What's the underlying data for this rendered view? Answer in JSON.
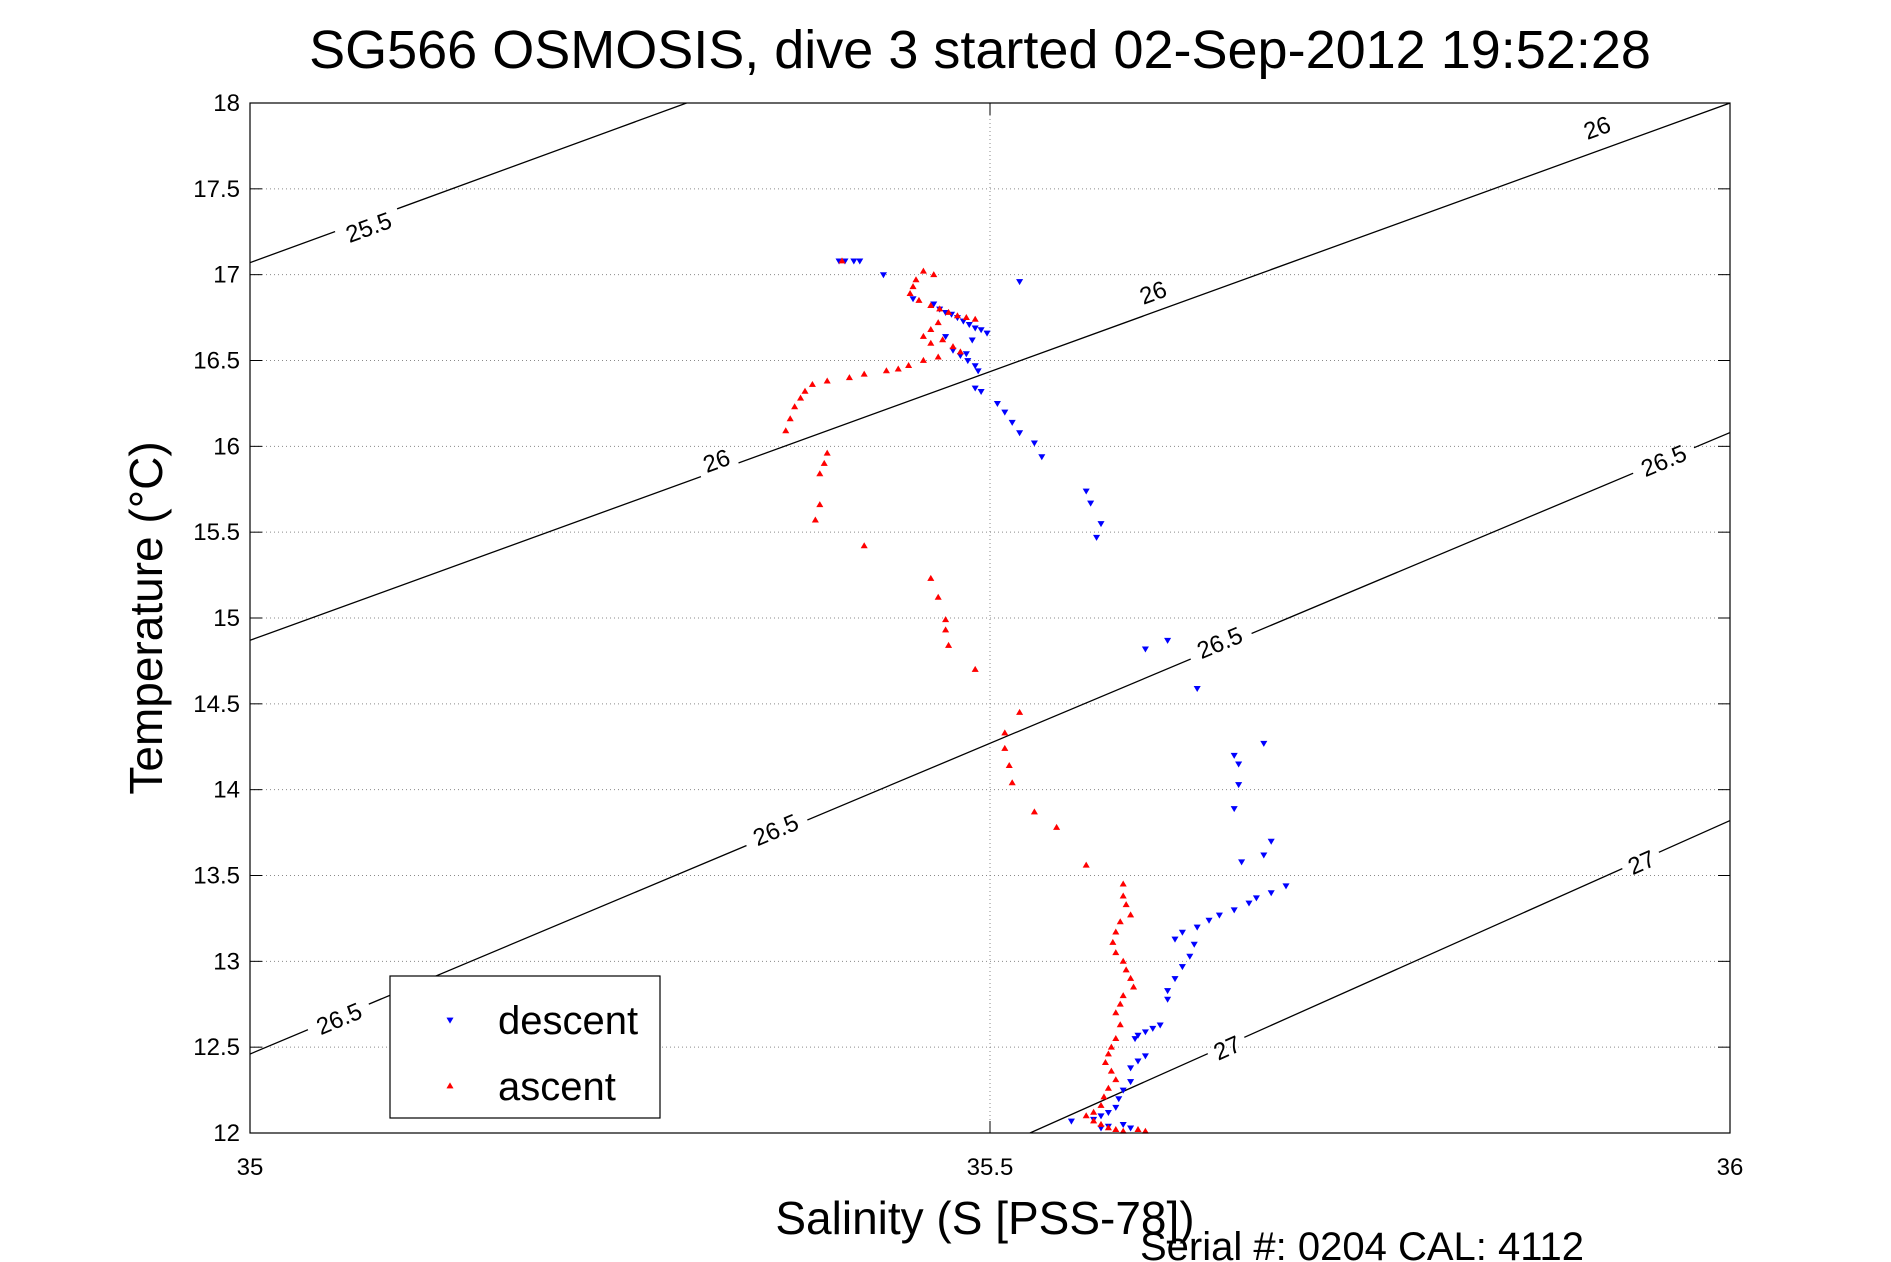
{
  "chart_data": {
    "type": "scatter",
    "title": "SG566 OSMOSIS, dive 3 started 02-Sep-2012 19:52:28",
    "xlabel": "Salinity (S [PSS-78])",
    "ylabel": "Temperature (°C)",
    "footer": "Serial #: 0204  CAL: 4112",
    "xlim": [
      35,
      36
    ],
    "ylim": [
      12,
      18
    ],
    "xticks": [
      35,
      35.5,
      36
    ],
    "xtick_labels": [
      "35",
      "35.5",
      "36"
    ],
    "yticks": [
      12,
      12.5,
      13,
      13.5,
      14,
      14.5,
      15,
      15.5,
      16,
      16.5,
      17,
      17.5,
      18
    ],
    "ytick_labels": [
      "12",
      "12.5",
      "13",
      "13.5",
      "14",
      "14.5",
      "15",
      "15.5",
      "16",
      "16.5",
      "17",
      "17.5",
      "18"
    ],
    "grid": true,
    "legend_position": "bottom-left",
    "colors": {
      "descent": "#0000ff",
      "ascent": "#ff0000",
      "contour": "#000000"
    },
    "contours": [
      {
        "label": "25.5",
        "points": [
          [
            35,
            17.07
          ],
          [
            35.295,
            18
          ]
        ],
        "label_positions": [
          [
            35.08,
            17.28
          ]
        ]
      },
      {
        "label": "26",
        "points": [
          [
            35,
            14.87
          ],
          [
            36,
            18
          ]
        ],
        "label_positions": [
          [
            35.315,
            15.92
          ],
          [
            35.61,
            16.9
          ],
          [
            35.91,
            17.86
          ]
        ]
      },
      {
        "label": "26.5",
        "points": [
          [
            35,
            12.46
          ],
          [
            36,
            16.08
          ]
        ],
        "label_positions": [
          [
            35.06,
            12.67
          ],
          [
            35.355,
            13.77
          ],
          [
            35.655,
            14.86
          ],
          [
            35.955,
            15.92
          ]
        ]
      },
      {
        "label": "27",
        "points": [
          [
            35.527,
            12
          ],
          [
            36,
            13.82
          ]
        ],
        "label_positions": [
          [
            35.66,
            12.5
          ],
          [
            35.94,
            13.58
          ]
        ]
      }
    ],
    "series": [
      {
        "name": "descent",
        "marker": "triangle-down",
        "points": [
          [
            35.398,
            17.08
          ],
          [
            35.402,
            17.08
          ],
          [
            35.408,
            17.08
          ],
          [
            35.412,
            17.08
          ],
          [
            35.428,
            17.0
          ],
          [
            35.52,
            16.96
          ],
          [
            35.448,
            16.86
          ],
          [
            35.462,
            16.83
          ],
          [
            35.466,
            16.8
          ],
          [
            35.47,
            16.78
          ],
          [
            35.474,
            16.77
          ],
          [
            35.478,
            16.75
          ],
          [
            35.482,
            16.73
          ],
          [
            35.486,
            16.71
          ],
          [
            35.49,
            16.69
          ],
          [
            35.494,
            16.68
          ],
          [
            35.498,
            16.66
          ],
          [
            35.488,
            16.62
          ],
          [
            35.47,
            16.64
          ],
          [
            35.475,
            16.56
          ],
          [
            35.48,
            16.53
          ],
          [
            35.485,
            16.5
          ],
          [
            35.49,
            16.47
          ],
          [
            35.492,
            16.44
          ],
          [
            35.484,
            16.54
          ],
          [
            35.49,
            16.34
          ],
          [
            35.494,
            16.32
          ],
          [
            35.505,
            16.25
          ],
          [
            35.51,
            16.2
          ],
          [
            35.515,
            16.14
          ],
          [
            35.52,
            16.08
          ],
          [
            35.53,
            16.02
          ],
          [
            35.535,
            15.94
          ],
          [
            35.565,
            15.74
          ],
          [
            35.568,
            15.67
          ],
          [
            35.575,
            15.55
          ],
          [
            35.572,
            15.47
          ],
          [
            35.605,
            14.82
          ],
          [
            35.62,
            14.87
          ],
          [
            35.64,
            14.59
          ],
          [
            35.665,
            14.2
          ],
          [
            35.668,
            14.15
          ],
          [
            35.668,
            14.03
          ],
          [
            35.665,
            13.89
          ],
          [
            35.685,
            14.27
          ],
          [
            35.69,
            13.7
          ],
          [
            35.685,
            13.62
          ],
          [
            35.67,
            13.58
          ],
          [
            35.7,
            13.44
          ],
          [
            35.69,
            13.4
          ],
          [
            35.68,
            13.37
          ],
          [
            35.675,
            13.34
          ],
          [
            35.665,
            13.3
          ],
          [
            35.655,
            13.27
          ],
          [
            35.648,
            13.24
          ],
          [
            35.64,
            13.2
          ],
          [
            35.63,
            13.17
          ],
          [
            35.625,
            13.13
          ],
          [
            35.638,
            13.1
          ],
          [
            35.635,
            13.03
          ],
          [
            35.63,
            12.97
          ],
          [
            35.625,
            12.9
          ],
          [
            35.62,
            12.83
          ],
          [
            35.62,
            12.78
          ],
          [
            35.615,
            12.63
          ],
          [
            35.61,
            12.61
          ],
          [
            35.605,
            12.59
          ],
          [
            35.6,
            12.57
          ],
          [
            35.598,
            12.55
          ],
          [
            35.605,
            12.45
          ],
          [
            35.6,
            12.42
          ],
          [
            35.595,
            12.38
          ],
          [
            35.595,
            12.3
          ],
          [
            35.59,
            12.25
          ],
          [
            35.587,
            12.2
          ],
          [
            35.585,
            12.15
          ],
          [
            35.58,
            12.12
          ],
          [
            35.575,
            12.1
          ],
          [
            35.57,
            12.08
          ],
          [
            35.59,
            12.05
          ],
          [
            35.595,
            12.03
          ],
          [
            35.58,
            12.04
          ],
          [
            35.575,
            12.03
          ],
          [
            35.555,
            12.07
          ]
        ]
      },
      {
        "name": "ascent",
        "marker": "triangle-up",
        "points": [
          [
            35.4,
            17.08
          ],
          [
            35.455,
            17.02
          ],
          [
            35.462,
            17.0
          ],
          [
            35.45,
            16.97
          ],
          [
            35.448,
            16.93
          ],
          [
            35.446,
            16.89
          ],
          [
            35.452,
            16.85
          ],
          [
            35.46,
            16.82
          ],
          [
            35.466,
            16.8
          ],
          [
            35.472,
            16.78
          ],
          [
            35.478,
            16.76
          ],
          [
            35.484,
            16.75
          ],
          [
            35.49,
            16.74
          ],
          [
            35.465,
            16.72
          ],
          [
            35.46,
            16.68
          ],
          [
            35.455,
            16.64
          ],
          [
            35.46,
            16.6
          ],
          [
            35.468,
            16.62
          ],
          [
            35.475,
            16.58
          ],
          [
            35.48,
            16.55
          ],
          [
            35.465,
            16.52
          ],
          [
            35.455,
            16.5
          ],
          [
            35.445,
            16.47
          ],
          [
            35.438,
            16.45
          ],
          [
            35.43,
            16.44
          ],
          [
            35.415,
            16.42
          ],
          [
            35.405,
            16.4
          ],
          [
            35.39,
            16.38
          ],
          [
            35.38,
            16.36
          ],
          [
            35.375,
            16.32
          ],
          [
            35.372,
            16.28
          ],
          [
            35.368,
            16.23
          ],
          [
            35.365,
            16.16
          ],
          [
            35.362,
            16.09
          ],
          [
            35.39,
            15.96
          ],
          [
            35.388,
            15.9
          ],
          [
            35.385,
            15.84
          ],
          [
            35.385,
            15.66
          ],
          [
            35.382,
            15.57
          ],
          [
            35.415,
            15.42
          ],
          [
            35.46,
            15.23
          ],
          [
            35.465,
            15.12
          ],
          [
            35.47,
            14.99
          ],
          [
            35.47,
            14.93
          ],
          [
            35.472,
            14.84
          ],
          [
            35.49,
            14.7
          ],
          [
            35.52,
            14.45
          ],
          [
            35.51,
            14.33
          ],
          [
            35.51,
            14.24
          ],
          [
            35.513,
            14.14
          ],
          [
            35.515,
            14.04
          ],
          [
            35.53,
            13.87
          ],
          [
            35.545,
            13.78
          ],
          [
            35.565,
            13.56
          ],
          [
            35.59,
            13.45
          ],
          [
            35.59,
            13.38
          ],
          [
            35.592,
            13.33
          ],
          [
            35.595,
            13.27
          ],
          [
            35.588,
            13.23
          ],
          [
            35.585,
            13.17
          ],
          [
            35.583,
            13.11
          ],
          [
            35.585,
            13.05
          ],
          [
            35.59,
            13.0
          ],
          [
            35.592,
            12.95
          ],
          [
            35.595,
            12.9
          ],
          [
            35.597,
            12.85
          ],
          [
            35.59,
            12.8
          ],
          [
            35.588,
            12.75
          ],
          [
            35.585,
            12.7
          ],
          [
            35.588,
            12.63
          ],
          [
            35.585,
            12.55
          ],
          [
            35.582,
            12.5
          ],
          [
            35.58,
            12.46
          ],
          [
            35.578,
            12.41
          ],
          [
            35.582,
            12.36
          ],
          [
            35.585,
            12.31
          ],
          [
            35.58,
            12.26
          ],
          [
            35.577,
            12.21
          ],
          [
            35.575,
            12.16
          ],
          [
            35.57,
            12.12
          ],
          [
            35.565,
            12.1
          ],
          [
            35.57,
            12.07
          ],
          [
            35.575,
            12.05
          ],
          [
            35.58,
            12.03
          ],
          [
            35.585,
            12.02
          ],
          [
            35.59,
            12.01
          ],
          [
            35.6,
            12.02
          ],
          [
            35.605,
            12.01
          ]
        ]
      }
    ]
  }
}
